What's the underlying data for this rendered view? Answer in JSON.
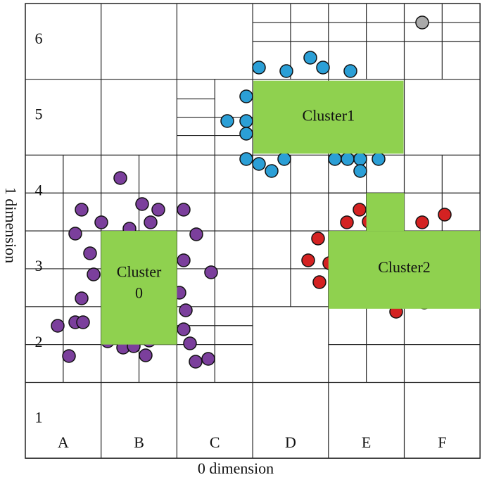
{
  "x_axis_label": "0 dimension",
  "y_axis_label": "1 dimension",
  "column_labels": [
    "A",
    "B",
    "C",
    "D",
    "E",
    "F"
  ],
  "row_labels": [
    "6",
    "5",
    "4",
    "3",
    "2",
    "1"
  ],
  "clusters": [
    {
      "lines": [
        "Cluster1"
      ]
    },
    {
      "lines": [
        "Cluster",
        "0"
      ]
    },
    {
      "lines": [
        "Cluster2"
      ]
    }
  ]
}
